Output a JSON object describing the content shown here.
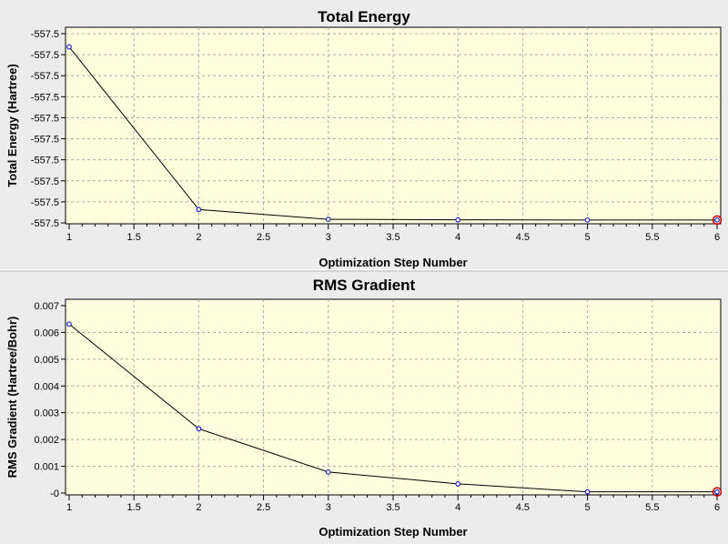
{
  "chart_data": [
    {
      "type": "line",
      "title": "Total Energy",
      "xlabel": "Optimization Step Number",
      "ylabel": "Total Energy (Hartree)",
      "x": [
        1,
        2,
        3,
        4,
        5,
        6
      ],
      "y": [
        -557.476,
        -557.567,
        -557.5725,
        -557.5728,
        -557.5729,
        -557.5729
      ],
      "xlim": [
        1,
        6
      ],
      "ylim": [
        -557.575,
        -557.465
      ],
      "x_ticks": [
        "1",
        "1.5",
        "2",
        "2.5",
        "3",
        "3.5",
        "4",
        "4.5",
        "5",
        "5.5",
        "6"
      ],
      "y_ticks": [
        "-557.5",
        "-557.5",
        "-557.5",
        "-557.5",
        "-557.5",
        "-557.5",
        "-557.5",
        "-557.5",
        "-557.5",
        "-557.5"
      ],
      "grid": true,
      "marker_color": "#2020c0",
      "line_color": "#000000",
      "highlight_point_color": "#cc0000"
    },
    {
      "type": "line",
      "title": "RMS Gradient",
      "xlabel": "Optimization Step Number",
      "ylabel": "RMS Gradient (Hartree/Bohr)",
      "x": [
        1,
        2,
        3,
        4,
        5,
        6
      ],
      "y": [
        0.0061,
        0.0023,
        0.00073,
        0.0003,
        1e-05,
        1e-05
      ],
      "xlim": [
        1,
        6
      ],
      "ylim": [
        -0.0001,
        0.007
      ],
      "x_ticks": [
        "1",
        "1.5",
        "2",
        "2.5",
        "3",
        "3.5",
        "4",
        "4.5",
        "5",
        "5.5",
        "6"
      ],
      "y_ticks": [
        "0.007",
        "0.006",
        "0.005",
        "0.004",
        "0.003",
        "0.002",
        "0.001",
        "-0"
      ],
      "grid": true,
      "marker_color": "#2020c0",
      "line_color": "#000000",
      "highlight_point_color": "#cc0000"
    }
  ]
}
